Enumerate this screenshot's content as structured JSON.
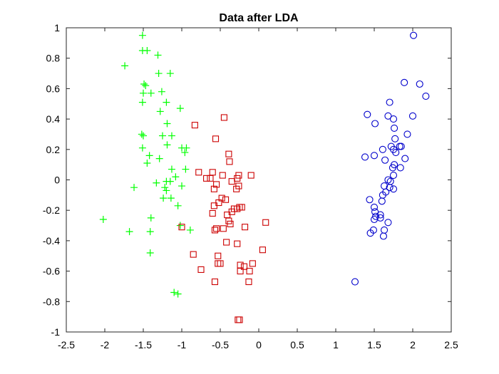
{
  "chart_data": {
    "type": "scatter",
    "title": "Data after LDA",
    "xlabel": "",
    "ylabel": "",
    "xlim": [
      -2.5,
      2.5
    ],
    "ylim": [
      -1,
      1
    ],
    "x_ticks": [
      -2.5,
      -2,
      -1.5,
      -1,
      -0.5,
      0,
      0.5,
      1,
      1.5,
      2,
      2.5
    ],
    "y_ticks": [
      -1,
      -0.8,
      -0.6,
      -0.4,
      -0.2,
      0,
      0.2,
      0.4,
      0.6,
      0.8,
      1
    ],
    "x_tick_labels": [
      "-2.5",
      "-2",
      "-1.5",
      "-1",
      "-0.5",
      "0",
      "0.5",
      "1",
      "1.5",
      "2",
      "2.5"
    ],
    "y_tick_labels": [
      "-1",
      "-0.8",
      "-0.6",
      "-0.4",
      "-0.2",
      "0",
      "0.2",
      "0.4",
      "0.6",
      "0.8",
      "1"
    ],
    "grid": false,
    "series": [
      {
        "marker": "plus",
        "color": "#00ff00",
        "points": [
          [
            -1.51,
            0.95
          ],
          [
            -1.51,
            0.85
          ],
          [
            -1.45,
            0.85
          ],
          [
            -1.31,
            0.82
          ],
          [
            -1.74,
            0.75
          ],
          [
            -1.3,
            0.7
          ],
          [
            -1.15,
            0.7
          ],
          [
            -1.49,
            0.63
          ],
          [
            -1.47,
            0.62
          ],
          [
            -1.5,
            0.57
          ],
          [
            -1.4,
            0.57
          ],
          [
            -1.26,
            0.58
          ],
          [
            -1.51,
            0.51
          ],
          [
            -1.2,
            0.51
          ],
          [
            -1.28,
            0.45
          ],
          [
            -1.02,
            0.47
          ],
          [
            -1.19,
            0.37
          ],
          [
            -1.52,
            0.3
          ],
          [
            -1.5,
            0.29
          ],
          [
            -1.25,
            0.29
          ],
          [
            -1.13,
            0.29
          ],
          [
            -1.19,
            0.23
          ],
          [
            -1.51,
            0.21
          ],
          [
            -1.0,
            0.21
          ],
          [
            -0.94,
            0.21
          ],
          [
            -0.96,
            0.18
          ],
          [
            -1.42,
            0.16
          ],
          [
            -1.29,
            0.14
          ],
          [
            -1.45,
            0.11
          ],
          [
            -1.13,
            0.07
          ],
          [
            -0.95,
            0.07
          ],
          [
            -1.08,
            0.02
          ],
          [
            -1.2,
            -0.01
          ],
          [
            -1.15,
            -0.01
          ],
          [
            -1.33,
            -0.02
          ],
          [
            -1.22,
            -0.05
          ],
          [
            -1.0,
            -0.04
          ],
          [
            -1.62,
            -0.05
          ],
          [
            -1.2,
            -0.07
          ],
          [
            -1.14,
            -0.12
          ],
          [
            -1.24,
            -0.12
          ],
          [
            -1.05,
            -0.17
          ],
          [
            -2.02,
            -0.26
          ],
          [
            -1.4,
            -0.25
          ],
          [
            -1.02,
            -0.3
          ],
          [
            -0.89,
            -0.33
          ],
          [
            -1.68,
            -0.34
          ],
          [
            -1.41,
            -0.34
          ],
          [
            -1.41,
            -0.48
          ],
          [
            -1.1,
            -0.74
          ],
          [
            -1.05,
            -0.75
          ]
        ]
      },
      {
        "marker": "square",
        "color": "#cc0000",
        "points": [
          [
            -0.45,
            0.41
          ],
          [
            -0.83,
            0.36
          ],
          [
            -0.56,
            0.27
          ],
          [
            -0.39,
            0.17
          ],
          [
            -0.38,
            0.12
          ],
          [
            -0.6,
            0.05
          ],
          [
            -0.78,
            0.05
          ],
          [
            -0.26,
            0.03
          ],
          [
            -0.1,
            0.03
          ],
          [
            -0.47,
            0.03
          ],
          [
            -0.63,
            0.01
          ],
          [
            -0.68,
            0.01
          ],
          [
            -0.28,
            0.01
          ],
          [
            -0.35,
            -0.01
          ],
          [
            -0.55,
            -0.03
          ],
          [
            -0.26,
            -0.04
          ],
          [
            -0.58,
            -0.06
          ],
          [
            -0.29,
            -0.06
          ],
          [
            -0.48,
            -0.12
          ],
          [
            -0.43,
            -0.13
          ],
          [
            -0.52,
            -0.15
          ],
          [
            -0.58,
            -0.17
          ],
          [
            -0.25,
            -0.18
          ],
          [
            -0.28,
            -0.19
          ],
          [
            -0.32,
            -0.19
          ],
          [
            -0.22,
            -0.18
          ],
          [
            -0.35,
            -0.21
          ],
          [
            -0.6,
            -0.22
          ],
          [
            -0.41,
            -0.23
          ],
          [
            -0.39,
            -0.27
          ],
          [
            0.09,
            -0.28
          ],
          [
            -1.0,
            -0.31
          ],
          [
            -0.37,
            -0.29
          ],
          [
            -0.18,
            -0.31
          ],
          [
            -0.55,
            -0.32
          ],
          [
            -0.57,
            -0.33
          ],
          [
            -0.46,
            -0.32
          ],
          [
            -0.42,
            -0.41
          ],
          [
            -0.28,
            -0.42
          ],
          [
            0.05,
            -0.46
          ],
          [
            -0.85,
            -0.49
          ],
          [
            -0.53,
            -0.5
          ],
          [
            -0.53,
            -0.55
          ],
          [
            -0.5,
            -0.55
          ],
          [
            -0.08,
            -0.55
          ],
          [
            -0.19,
            -0.57
          ],
          [
            -0.24,
            -0.56
          ],
          [
            -0.24,
            -0.6
          ],
          [
            -0.75,
            -0.59
          ],
          [
            -0.12,
            -0.6
          ],
          [
            -0.13,
            -0.67
          ],
          [
            -0.57,
            -0.67
          ],
          [
            -0.27,
            -0.92
          ],
          [
            -0.25,
            -0.92
          ]
        ]
      },
      {
        "marker": "circle",
        "color": "#0000cc",
        "points": [
          [
            2.01,
            0.95
          ],
          [
            2.09,
            0.63
          ],
          [
            1.89,
            0.64
          ],
          [
            2.17,
            0.55
          ],
          [
            1.7,
            0.51
          ],
          [
            1.41,
            0.43
          ],
          [
            1.68,
            0.42
          ],
          [
            2.0,
            0.42
          ],
          [
            1.75,
            0.4
          ],
          [
            1.51,
            0.37
          ],
          [
            1.76,
            0.34
          ],
          [
            1.93,
            0.3
          ],
          [
            1.77,
            0.27
          ],
          [
            1.72,
            0.22
          ],
          [
            1.83,
            0.22
          ],
          [
            1.85,
            0.22
          ],
          [
            1.61,
            0.2
          ],
          [
            1.75,
            0.2
          ],
          [
            1.78,
            0.18
          ],
          [
            1.5,
            0.16
          ],
          [
            1.38,
            0.15
          ],
          [
            1.9,
            0.14
          ],
          [
            1.64,
            0.13
          ],
          [
            1.76,
            0.1
          ],
          [
            1.74,
            0.08
          ],
          [
            1.84,
            0.08
          ],
          [
            1.75,
            0.03
          ],
          [
            1.68,
            0.0
          ],
          [
            1.71,
            -0.01
          ],
          [
            1.63,
            -0.04
          ],
          [
            1.7,
            -0.05
          ],
          [
            1.75,
            -0.06
          ],
          [
            1.65,
            -0.08
          ],
          [
            1.61,
            -0.1
          ],
          [
            1.44,
            -0.13
          ],
          [
            1.6,
            -0.14
          ],
          [
            1.5,
            -0.18
          ],
          [
            1.51,
            -0.21
          ],
          [
            1.58,
            -0.23
          ],
          [
            1.52,
            -0.24
          ],
          [
            1.5,
            -0.26
          ],
          [
            1.58,
            -0.25
          ],
          [
            1.68,
            -0.28
          ],
          [
            1.49,
            -0.33
          ],
          [
            1.45,
            -0.35
          ],
          [
            1.63,
            -0.33
          ],
          [
            1.62,
            -0.37
          ],
          [
            1.25,
            -0.67
          ]
        ]
      }
    ]
  }
}
